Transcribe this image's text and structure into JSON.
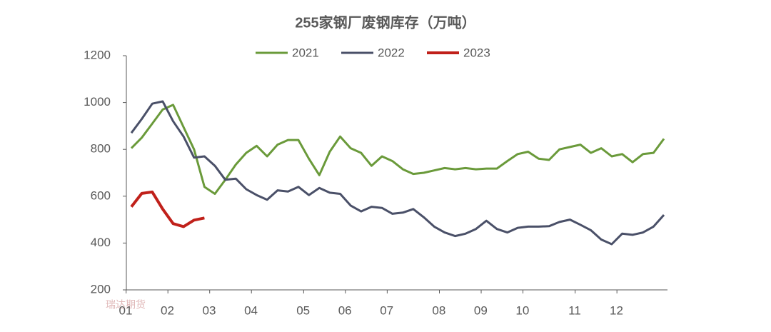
{
  "chart_data": {
    "type": "line",
    "title": "255家钢厂废钢库存（万吨）",
    "watermark": "瑞达期货",
    "categories": [
      "01",
      null,
      null,
      null,
      "02",
      null,
      null,
      null,
      "03",
      null,
      null,
      null,
      "04",
      null,
      null,
      null,
      null,
      "05",
      null,
      null,
      null,
      "06",
      null,
      null,
      null,
      "07",
      null,
      null,
      null,
      null,
      "08",
      null,
      null,
      null,
      "09",
      null,
      null,
      null,
      "10",
      null,
      null,
      null,
      null,
      "11",
      null,
      null,
      null,
      "12",
      null,
      null,
      null,
      null
    ],
    "series": [
      {
        "name": "2021",
        "color": "#6a9a3a",
        "values": [
          805,
          850,
          910,
          970,
          990,
          895,
          800,
          640,
          610,
          670,
          735,
          785,
          815,
          770,
          820,
          840,
          840,
          760,
          690,
          790,
          855,
          805,
          785,
          730,
          770,
          750,
          715,
          695,
          700,
          710,
          720,
          715,
          720,
          715,
          718,
          718,
          750,
          780,
          790,
          760,
          755,
          800,
          810,
          820,
          785,
          805,
          770,
          780,
          745,
          780,
          785,
          845
        ]
      },
      {
        "name": "2022",
        "color": "#4a5068",
        "values": [
          870,
          930,
          995,
          1005,
          920,
          855,
          765,
          770,
          730,
          670,
          675,
          630,
          605,
          585,
          625,
          620,
          640,
          605,
          635,
          615,
          610,
          560,
          535,
          555,
          550,
          525,
          530,
          545,
          510,
          470,
          445,
          430,
          440,
          460,
          495,
          460,
          445,
          465,
          470,
          470,
          472,
          490,
          500,
          478,
          455,
          415,
          395,
          440,
          435,
          445,
          470,
          520
        ]
      },
      {
        "name": "2023",
        "color": "#c0201a",
        "values": [
          555,
          612,
          618,
          545,
          483,
          470,
          498,
          507,
          null,
          null,
          null,
          null,
          null,
          null,
          null,
          null,
          null,
          null,
          null,
          null,
          null,
          null,
          null,
          null,
          null,
          null,
          null,
          null,
          null,
          null,
          null,
          null,
          null,
          null,
          null,
          null,
          null,
          null,
          null,
          null,
          null,
          null,
          null,
          null,
          null,
          null,
          null,
          null,
          null,
          null,
          null,
          null
        ]
      }
    ],
    "ylim": [
      200,
      1200
    ],
    "yticks": [
      200,
      400,
      600,
      800,
      1000,
      1200
    ]
  }
}
